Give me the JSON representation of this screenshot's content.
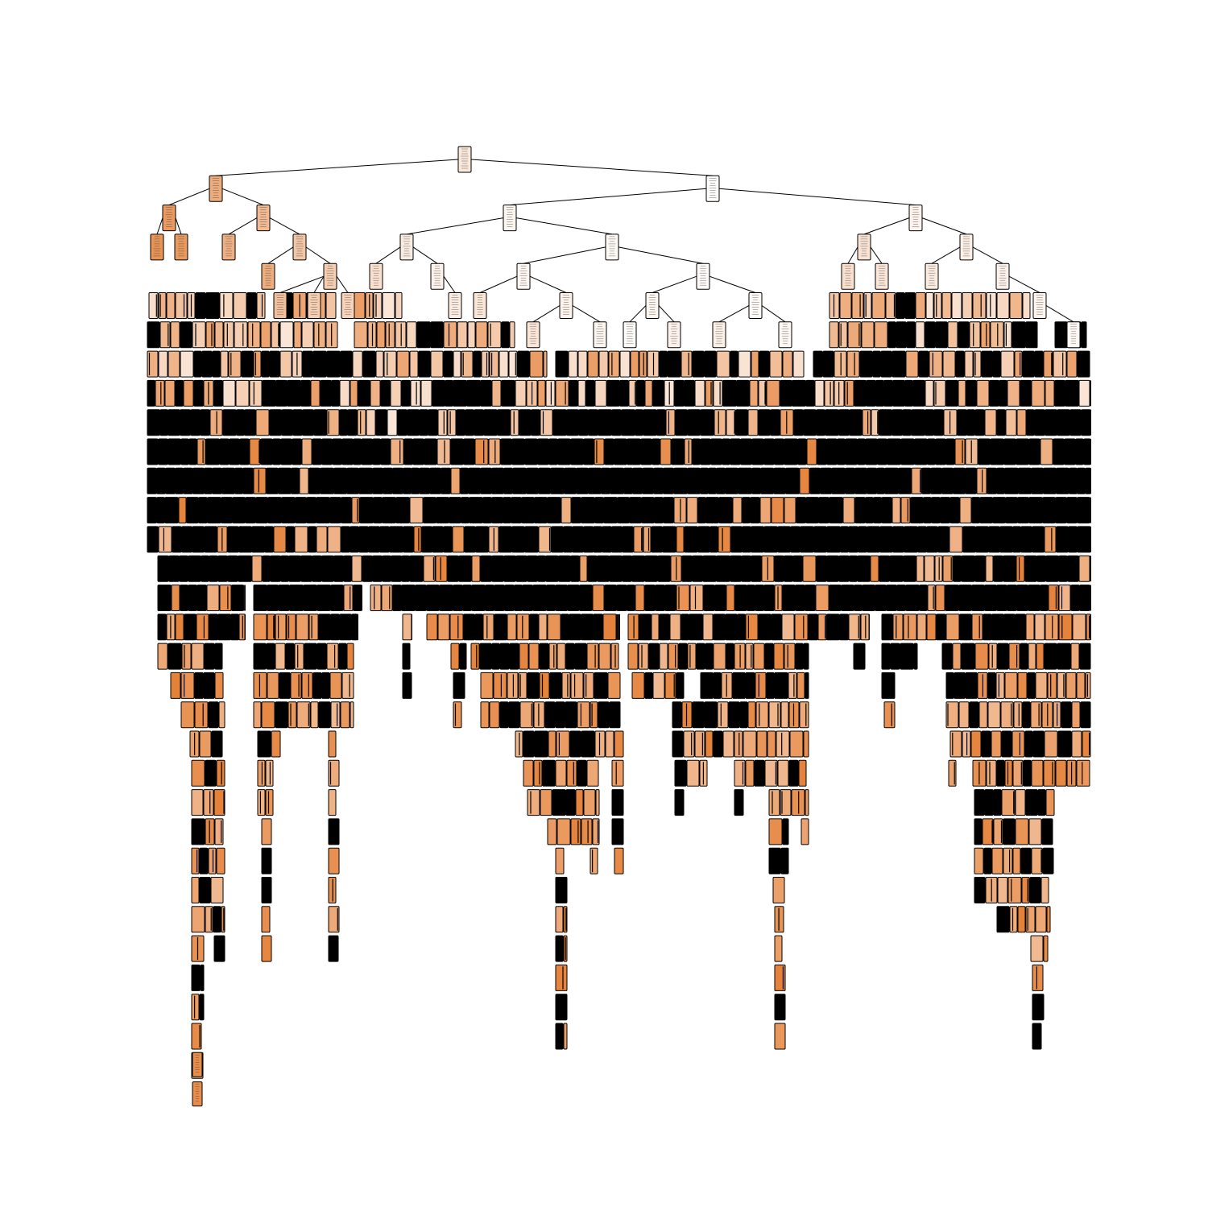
{
  "diagram": {
    "type": "decision-tree",
    "colors": {
      "background": "#ffffff",
      "edge": "#000000",
      "node_border": "#000000",
      "leaf_fill": "#e58139",
      "neutral_fill": "#ffffff"
    },
    "node_text_legible": false
  }
}
